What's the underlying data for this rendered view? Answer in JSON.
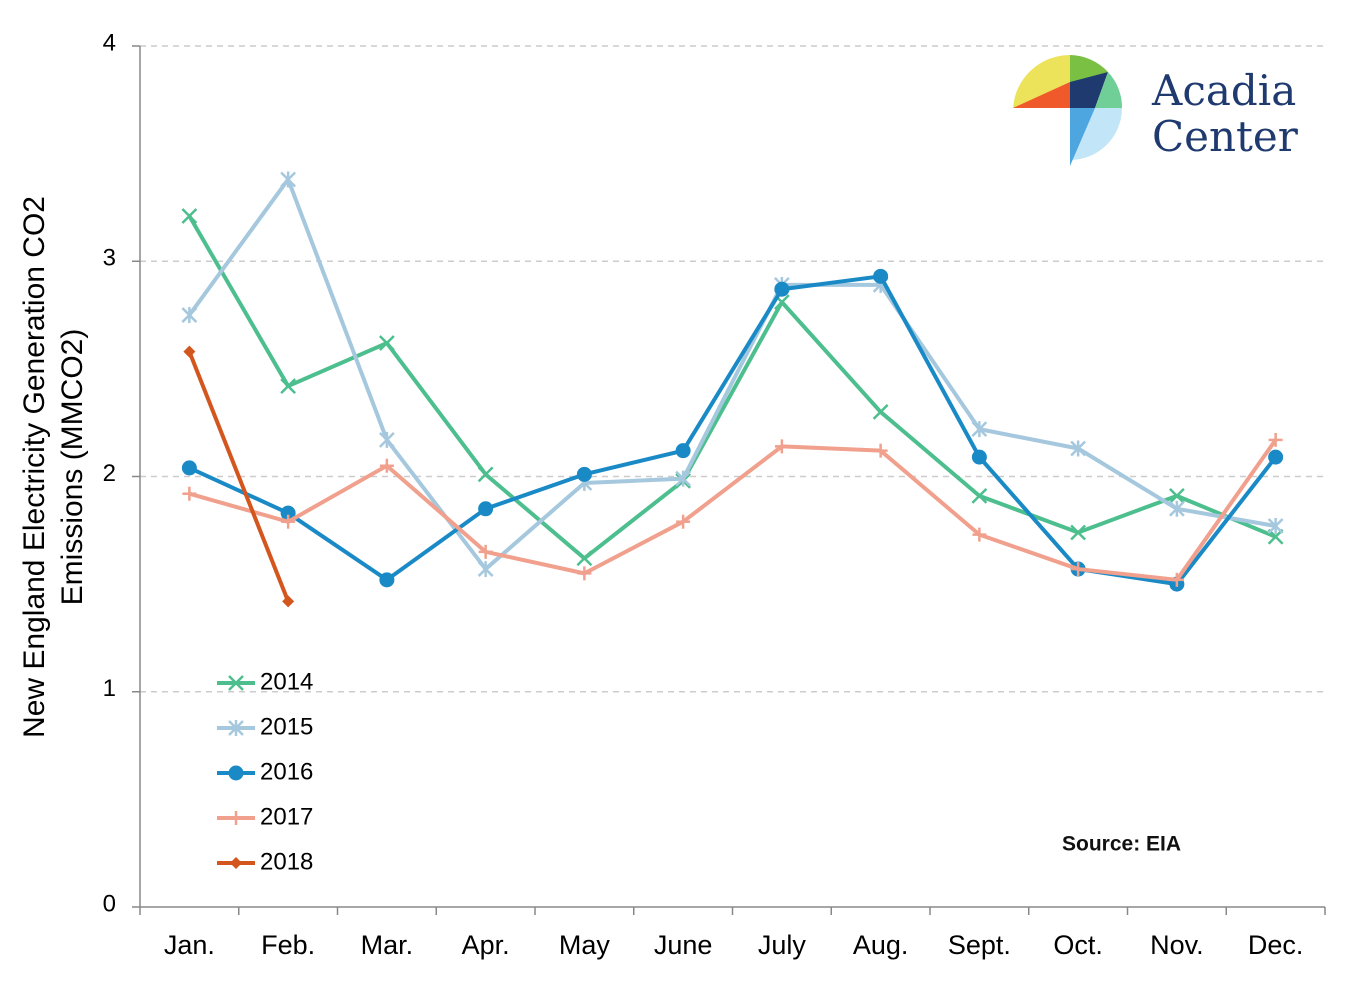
{
  "chart_data": {
    "type": "line",
    "ylabel": [
      "New England Electricity Generation CO2",
      "Emissions (MMCO2)"
    ],
    "categories": [
      "Jan.",
      "Feb.",
      "Mar.",
      "Apr.",
      "May",
      "June",
      "July",
      "Aug.",
      "Sept.",
      "Oct.",
      "Nov.",
      "Dec."
    ],
    "series": [
      {
        "name": "2014",
        "color": "#4dbf8e",
        "marker": "x",
        "values": [
          3.21,
          2.42,
          2.62,
          2.01,
          1.62,
          1.98,
          2.81,
          2.3,
          1.91,
          1.74,
          1.91,
          1.72
        ]
      },
      {
        "name": "2015",
        "color": "#a5c8de",
        "marker": "asterisk",
        "values": [
          2.75,
          3.38,
          2.17,
          1.57,
          1.97,
          1.99,
          2.89,
          2.89,
          2.22,
          2.13,
          1.85,
          1.77
        ]
      },
      {
        "name": "2016",
        "color": "#1a8ac6",
        "marker": "circle",
        "values": [
          2.04,
          1.83,
          1.52,
          1.85,
          2.01,
          2.12,
          2.87,
          2.93,
          2.09,
          1.57,
          1.5,
          2.09
        ]
      },
      {
        "name": "2017",
        "color": "#f0a08c",
        "marker": "plus",
        "values": [
          1.92,
          1.79,
          2.05,
          1.65,
          1.55,
          1.79,
          2.14,
          2.12,
          1.73,
          1.57,
          1.52,
          2.17
        ]
      },
      {
        "name": "2018",
        "color": "#d4561f",
        "marker": "diamond",
        "values": [
          2.58,
          1.42,
          null,
          null,
          null,
          null,
          null,
          null,
          null,
          null,
          null,
          null
        ]
      }
    ],
    "ylim": [
      0,
      4
    ],
    "yticks": [
      0,
      1,
      2,
      3,
      4
    ],
    "grid": true,
    "legend": "lower left",
    "annotations": [
      "Source: EIA"
    ],
    "logo": [
      "Acadia",
      "Center"
    ]
  }
}
